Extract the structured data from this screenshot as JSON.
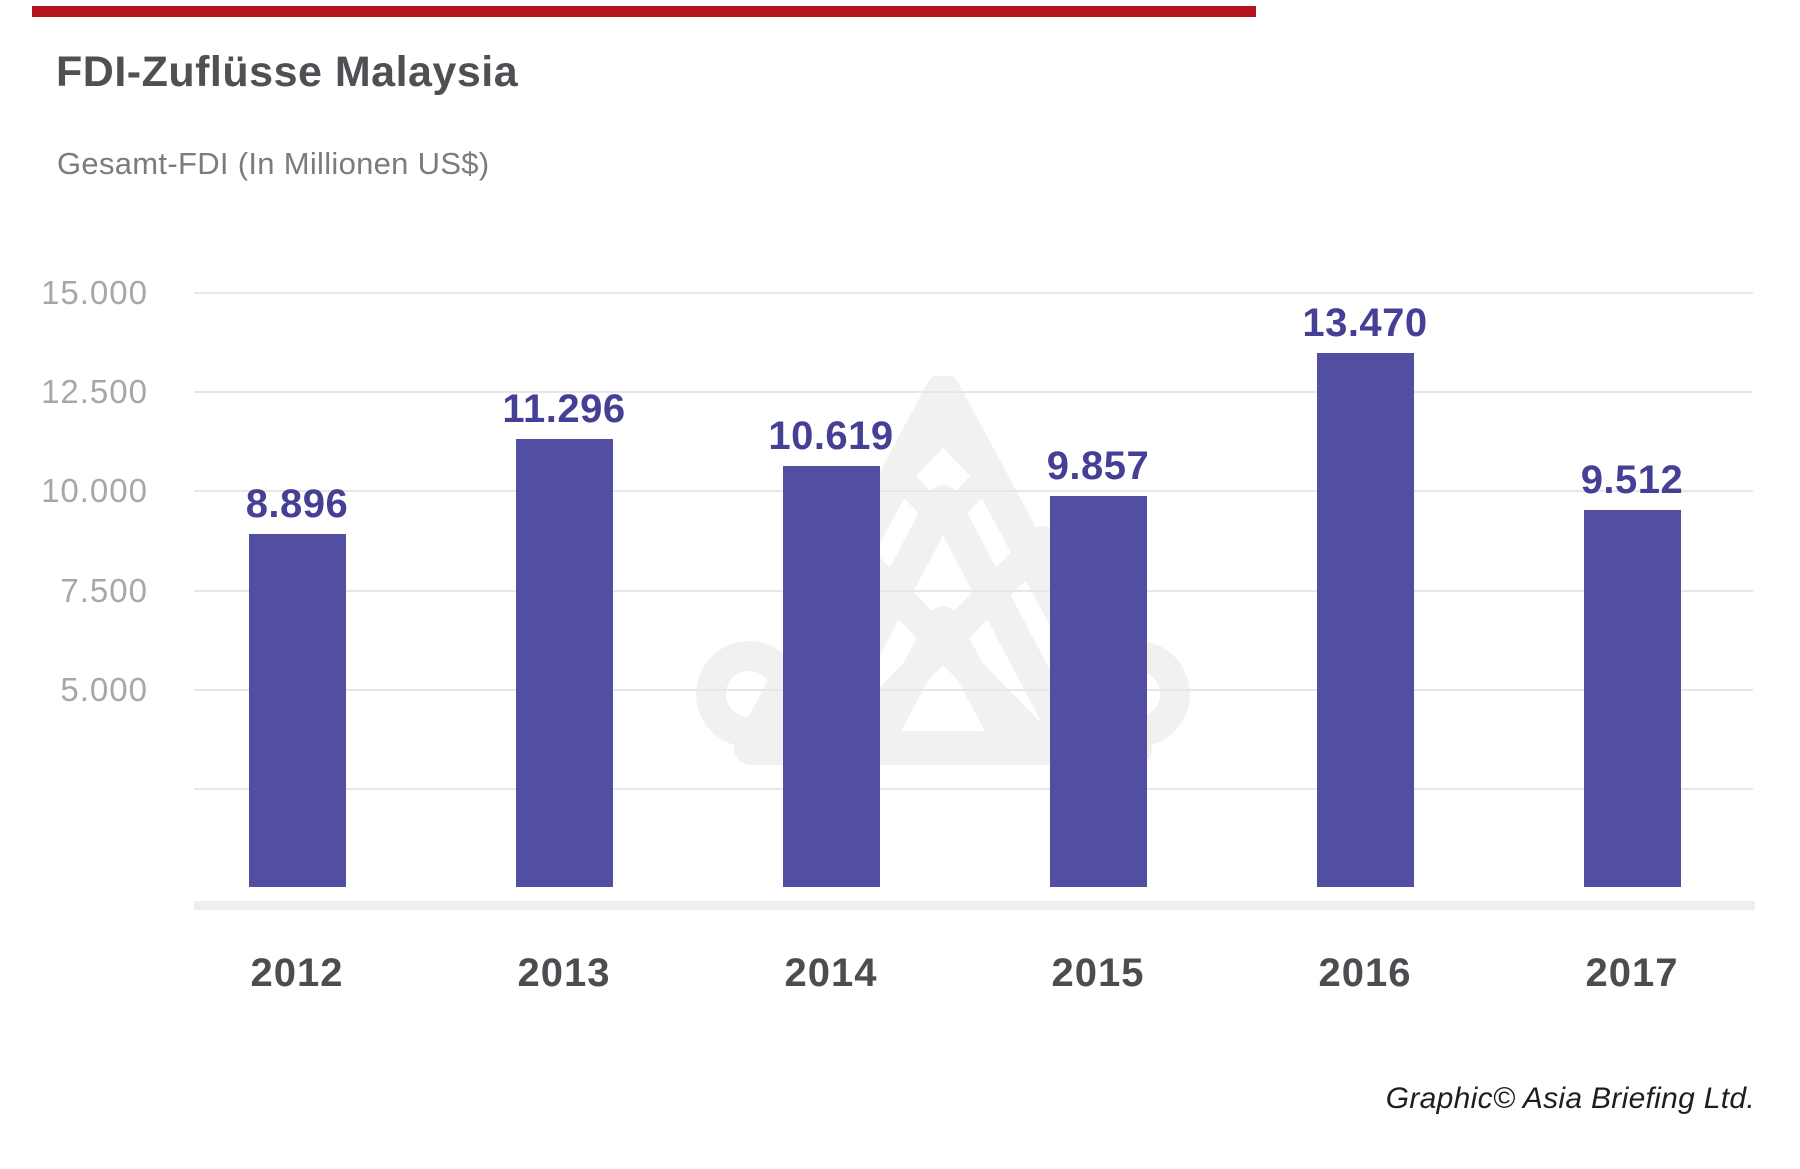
{
  "header": {
    "accent_color": "#b5121f"
  },
  "footer": {
    "credit": "Graphic© Asia Briefing Ltd."
  },
  "watermark_name": "asia-briefing-logo",
  "chart_data": {
    "type": "bar",
    "title": "FDI-Zuflüsse Malaysia",
    "subtitle": "Gesamt-FDI (In Millionen US$)",
    "categories": [
      "2012",
      "2013",
      "2014",
      "2015",
      "2016",
      "2017"
    ],
    "values": [
      8896,
      11296,
      10619,
      9857,
      13470,
      9512
    ],
    "value_labels": [
      "8.896",
      "11.296",
      "10.619",
      "9.857",
      "13.470",
      "9.512"
    ],
    "ylim": [
      0,
      15000
    ],
    "y_ticks": [
      {
        "value": 15000,
        "label": "15.000"
      },
      {
        "value": 12500,
        "label": "12.500"
      },
      {
        "value": 10000,
        "label": "10.000"
      },
      {
        "value": 7500,
        "label": "7.500"
      },
      {
        "value": 5000,
        "label": "5.000"
      },
      {
        "value": 2500,
        "label": ""
      }
    ],
    "grid": true,
    "legend": null,
    "bar_color": "#524ea2",
    "value_label_color": "#453f96",
    "gridline_color": "#e7e7e9",
    "watermark_color": "#f2f1ef"
  }
}
